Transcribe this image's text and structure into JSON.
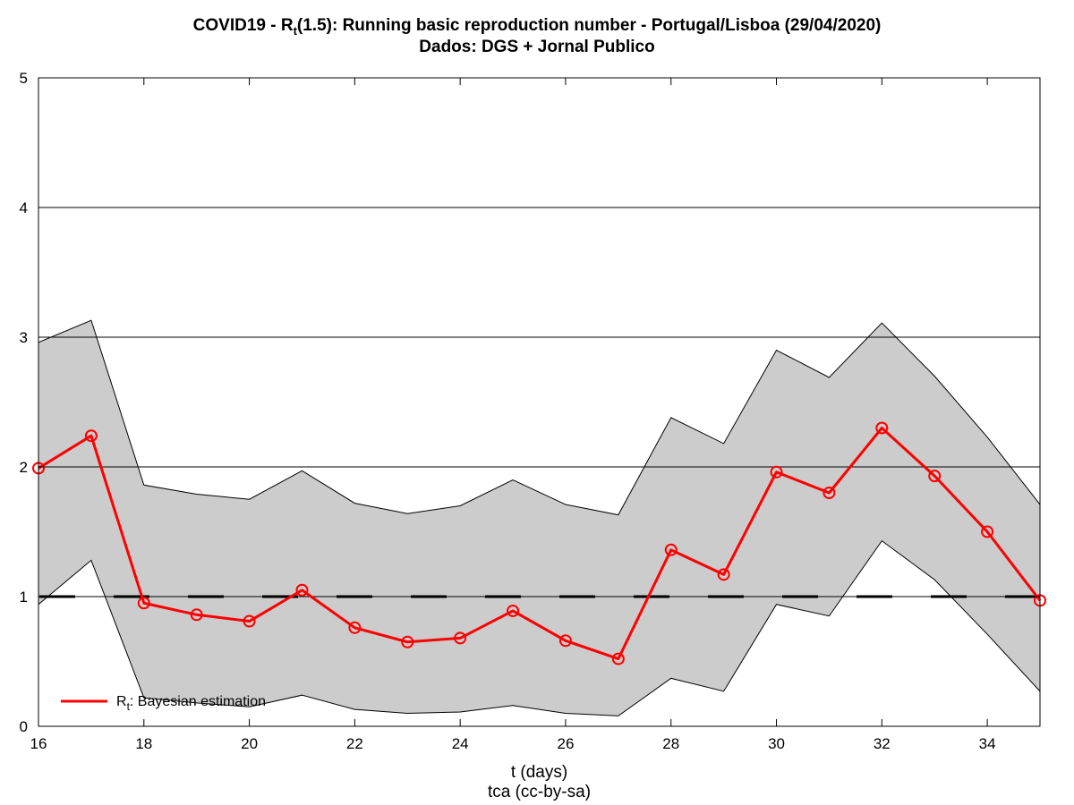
{
  "title": {
    "line1_prefix": "COVID19 - R",
    "line1_sub": "t",
    "line1_suffix": "(1.5): Running basic reproduction number - Portugal/Lisboa (29/04/2020)",
    "line2": "Dados: DGS + Jornal Publico"
  },
  "chart_data": {
    "type": "line",
    "xlabel": "t (days)",
    "footer": "tca (cc-by-sa)",
    "xlim": [
      16,
      35
    ],
    "ylim": [
      0,
      5
    ],
    "xticks": [
      16,
      18,
      20,
      22,
      24,
      26,
      28,
      30,
      32,
      34
    ],
    "yticks": [
      0,
      1,
      2,
      3,
      4,
      5
    ],
    "grid": "horizontal",
    "x": [
      16,
      17,
      18,
      19,
      20,
      21,
      22,
      23,
      24,
      25,
      26,
      27,
      28,
      29,
      30,
      31,
      32,
      33,
      34,
      35
    ],
    "series": [
      {
        "name_prefix": "R",
        "name_sub": "t",
        "name_suffix": ": Bayesian estimation",
        "color": "#ff0000",
        "marker": "circle",
        "values": [
          1.99,
          2.24,
          0.95,
          0.86,
          0.81,
          1.05,
          0.76,
          0.65,
          0.68,
          0.89,
          0.66,
          0.52,
          1.36,
          1.17,
          1.96,
          1.8,
          2.3,
          1.93,
          1.5,
          0.97
        ]
      }
    ],
    "band": {
      "color": "#cccccc",
      "upper": [
        2.96,
        3.13,
        1.86,
        1.79,
        1.75,
        1.97,
        1.72,
        1.64,
        1.7,
        1.9,
        1.71,
        1.63,
        2.38,
        2.18,
        2.9,
        2.69,
        3.11,
        2.7,
        2.23,
        1.71
      ],
      "lower": [
        0.94,
        1.28,
        0.22,
        0.18,
        0.15,
        0.24,
        0.13,
        0.1,
        0.11,
        0.16,
        0.1,
        0.08,
        0.37,
        0.27,
        0.94,
        0.85,
        1.43,
        1.13,
        0.71,
        0.27
      ]
    },
    "reference_line": {
      "y": 1,
      "style": "dashed",
      "color": "#000000"
    },
    "legend_position": "bottom-left"
  }
}
